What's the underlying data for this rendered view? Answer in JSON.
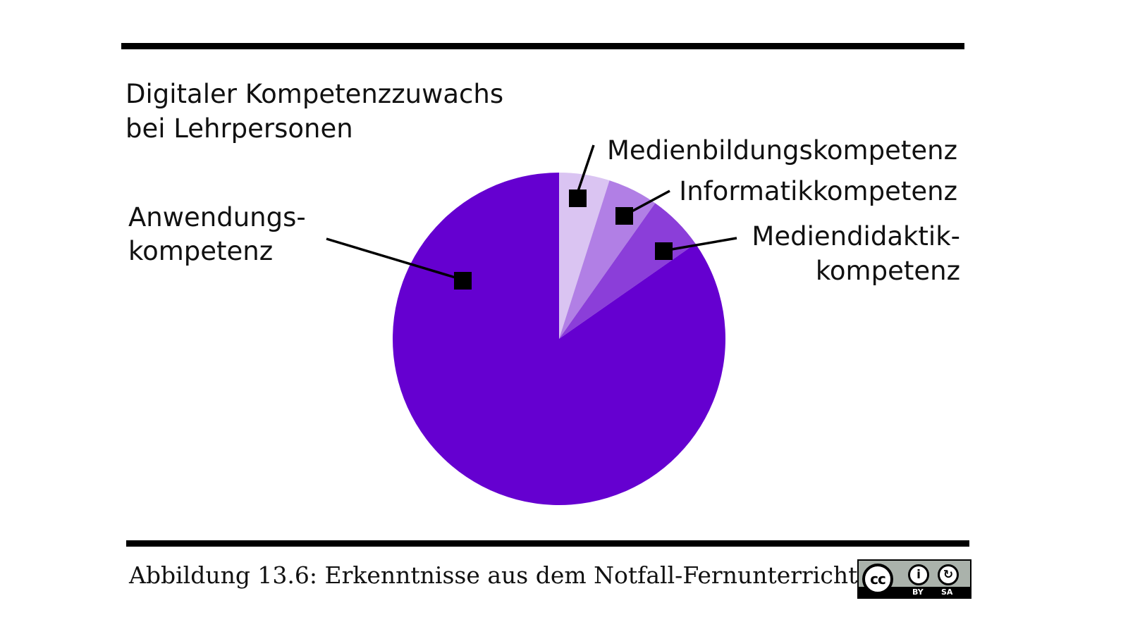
{
  "chart_data": {
    "type": "pie",
    "title_lines": [
      "Digitaler Kompetenzzuwachs",
      "bei Lehrpersonen"
    ],
    "slices": [
      {
        "name": "Medienbildungskompetenz",
        "value": 4.9,
        "color": "#dac4f2"
      },
      {
        "name": "Informatikkompetenz",
        "value": 4.9,
        "color": "#b17fe5"
      },
      {
        "name": "Mediendidaktikkompetenz",
        "value": 5.5,
        "color": "#8b3ed9"
      },
      {
        "name": "Anwendungskompetenz",
        "value": 84.7,
        "color": "#6500d0"
      }
    ],
    "label_texts": {
      "medienbildung": [
        "Medienbildungskompetenz"
      ],
      "informatik": [
        "Informatikkompetenz"
      ],
      "mediendidaktik": [
        "Mediendidaktik-",
        "kompetenz"
      ],
      "anwendung": [
        "Anwendungs-",
        "kompetenz"
      ]
    }
  },
  "caption": "Abbildung 13.6: Erkenntnisse aus dem Notfall-Fernunterricht",
  "license": {
    "cc": "cc",
    "by_icon": "i",
    "sa_icon": "↻",
    "by": "BY",
    "sa": "SA"
  }
}
